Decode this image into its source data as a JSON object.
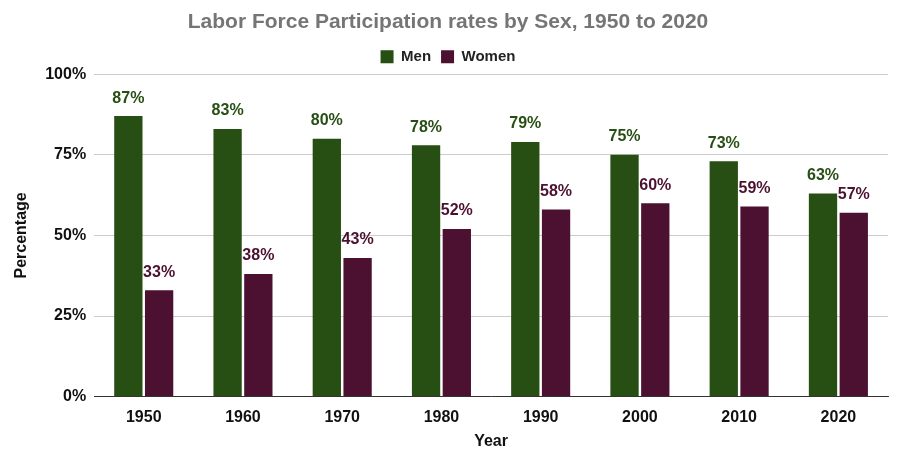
{
  "chart_data": {
    "type": "bar",
    "title": "Labor Force Participation rates by Sex, 1950 to 2020",
    "x_label": "Year",
    "y_label": "Percentage",
    "categories": [
      "1950",
      "1960",
      "1970",
      "1980",
      "1990",
      "2000",
      "2010",
      "2020"
    ],
    "series": [
      {
        "name": "Men",
        "color": "#274e13",
        "values": [
          87,
          83,
          80,
          78,
          79,
          75,
          73,
          63
        ],
        "value_labels": [
          "87%",
          "83%",
          "80%",
          "78%",
          "79%",
          "75%",
          "73%",
          "63%"
        ]
      },
      {
        "name": "Women",
        "color": "#4c1130",
        "values": [
          33,
          38,
          43,
          52,
          58,
          60,
          59,
          57
        ],
        "value_labels": [
          "33%",
          "38%",
          "43%",
          "52%",
          "58%",
          "60%",
          "59%",
          "57%"
        ]
      }
    ],
    "ylim": [
      0,
      100
    ],
    "yticks": [
      {
        "value": 0,
        "label": "0%"
      },
      {
        "value": 25,
        "label": "25%"
      },
      {
        "value": 50,
        "label": "50%"
      },
      {
        "value": 75,
        "label": "75%"
      },
      {
        "value": 100,
        "label": "100%"
      }
    ],
    "grid": true,
    "legend": "top",
    "data_labels": true
  }
}
